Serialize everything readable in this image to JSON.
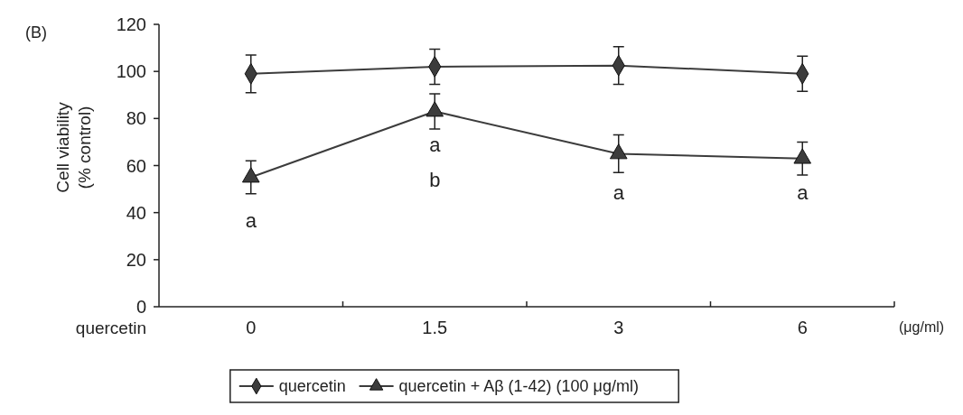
{
  "chart_data": {
    "type": "line",
    "ylabel": "Cell viability\n(% control)",
    "xlabel": "quercetin",
    "categories": [
      "0",
      "1.5",
      "3",
      "6"
    ],
    "series": [
      {
        "name": "quercetin",
        "color": "#3c3c3c",
        "marker": "diamond",
        "values": [
          99,
          102,
          102.5,
          99
        ],
        "errors": [
          8,
          7.5,
          8,
          7.5
        ]
      },
      {
        "name": "quercetin + Aβ (1-42) (100 μg/ml)",
        "color": "#3c3c3c",
        "marker": "triangle",
        "values": [
          55,
          83,
          65,
          63
        ],
        "errors": [
          7,
          7.5,
          8,
          7
        ]
      }
    ],
    "ylim": [
      0,
      120
    ],
    "yticks": [
      0,
      20,
      40,
      60,
      80,
      100,
      120
    ],
    "grid": false,
    "legend": "bottom",
    "line_style": "solid",
    "annotations": [
      "(B)",
      "(μg/ml)",
      "a",
      "a",
      "b",
      "a",
      "a"
    ]
  }
}
